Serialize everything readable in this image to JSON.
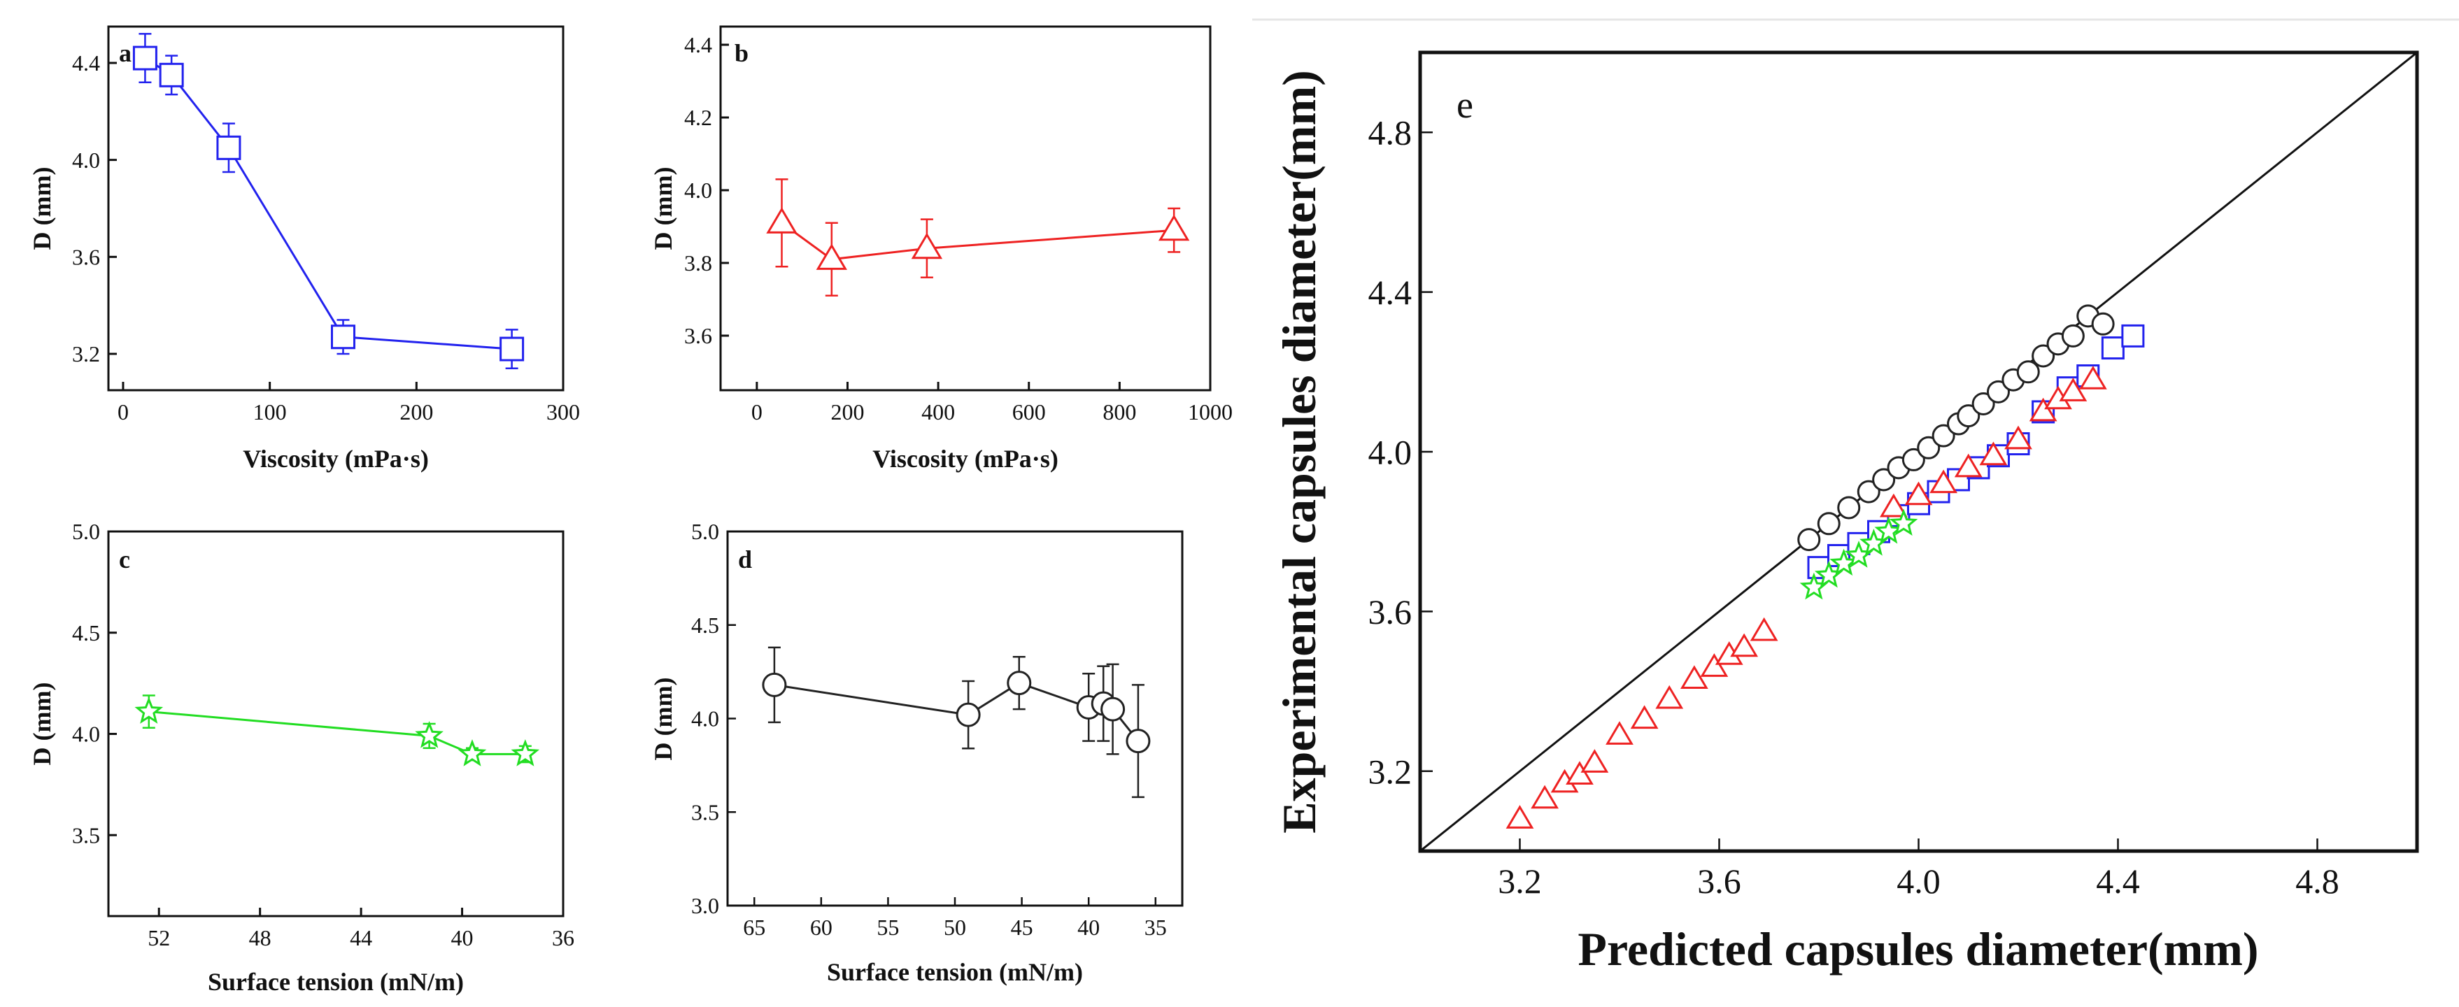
{
  "chart_data": [
    {
      "id": "a",
      "panel_label": "a",
      "type": "line",
      "title": "",
      "xlabel": "Viscosity (mPa·s)",
      "ylabel": "D (mm)",
      "xlim": [
        -10,
        300
      ],
      "ylim": [
        3.05,
        4.55
      ],
      "xticks": [
        0,
        100,
        200,
        300
      ],
      "xtick_labels": [
        "0",
        "100",
        "200",
        "300"
      ],
      "yticks": [
        3.2,
        3.6,
        4.0,
        4.4
      ],
      "ytick_labels": [
        "3.2",
        "3.6",
        "4.0",
        "4.4"
      ],
      "series": [
        {
          "name": "Viscosity (a)",
          "color": "#2222ee",
          "marker": "square",
          "x": [
            15,
            33,
            72,
            150,
            265
          ],
          "y": [
            4.42,
            4.35,
            4.05,
            3.27,
            3.22
          ],
          "err": [
            0.1,
            0.08,
            0.1,
            0.07,
            0.08
          ]
        }
      ]
    },
    {
      "id": "b",
      "panel_label": "b",
      "type": "line",
      "title": "",
      "xlabel": "Viscosity (mPa·s)",
      "ylabel": "D (mm)",
      "xlim": [
        -80,
        1000
      ],
      "ylim": [
        3.45,
        4.45
      ],
      "xticks": [
        0,
        200,
        400,
        600,
        800,
        1000
      ],
      "xtick_labels": [
        "0",
        "200",
        "400",
        "600",
        "800",
        "1000"
      ],
      "yticks": [
        3.6,
        3.8,
        4.0,
        4.2,
        4.4
      ],
      "ytick_labels": [
        "3.6",
        "3.8",
        "4.0",
        "4.2",
        "4.4"
      ],
      "series": [
        {
          "name": "Viscosity (b)",
          "color": "#ee2222",
          "marker": "triangle",
          "x": [
            55,
            165,
            375,
            920
          ],
          "y": [
            3.91,
            3.81,
            3.84,
            3.89
          ],
          "err": [
            0.12,
            0.1,
            0.08,
            0.06
          ]
        }
      ]
    },
    {
      "id": "c",
      "panel_label": "c",
      "type": "line",
      "title": "",
      "xlabel": "Surface tension (mN/m)",
      "ylabel": "D (mm)",
      "xlim": [
        54,
        36
      ],
      "ylim": [
        3.1,
        5.0
      ],
      "xticks": [
        52,
        48,
        44,
        40,
        36
      ],
      "xtick_labels": [
        "52",
        "48",
        "44",
        "40",
        "36"
      ],
      "yticks": [
        3.5,
        4.0,
        4.5,
        5.0
      ],
      "ytick_labels": [
        "3.5",
        "4.0",
        "4.5",
        "5.0"
      ],
      "series": [
        {
          "name": "Surface tension (c)",
          "color": "#22dd22",
          "marker": "star",
          "x": [
            52.4,
            41.3,
            39.6,
            37.5
          ],
          "y": [
            4.11,
            3.99,
            3.9,
            3.9
          ],
          "err": [
            0.08,
            0.06,
            0.03,
            0.04
          ]
        }
      ]
    },
    {
      "id": "d",
      "panel_label": "d",
      "type": "line",
      "title": "",
      "xlabel": "Surface tension (mN/m)",
      "ylabel": "D (mm)",
      "xlim": [
        67,
        33
      ],
      "ylim": [
        3.0,
        5.0
      ],
      "xticks": [
        65,
        60,
        55,
        50,
        45,
        40,
        35
      ],
      "xtick_labels": [
        "65",
        "60",
        "55",
        "50",
        "45",
        "40",
        "35"
      ],
      "yticks": [
        3.0,
        3.5,
        4.0,
        4.5,
        5.0
      ],
      "ytick_labels": [
        "3.0",
        "3.5",
        "4.0",
        "4.5",
        "5.0"
      ],
      "series": [
        {
          "name": "Surface tension (d)",
          "color": "#222222",
          "marker": "circle",
          "x": [
            63.5,
            49.0,
            45.2,
            40.0,
            38.9,
            38.2,
            36.3
          ],
          "y": [
            4.18,
            4.02,
            4.19,
            4.06,
            4.08,
            4.05,
            3.88
          ],
          "err": [
            0.2,
            0.18,
            0.14,
            0.18,
            0.2,
            0.24,
            0.3
          ]
        }
      ]
    },
    {
      "id": "e",
      "panel_label": "e",
      "type": "scatter",
      "title": "",
      "xlabel": "Predicted capsules diameter(mm)",
      "ylabel": "Experimental capsules diameter(mm)",
      "xlim": [
        3.0,
        5.0
      ],
      "ylim": [
        3.0,
        5.0
      ],
      "xticks": [
        3.2,
        3.6,
        4.0,
        4.4,
        4.8
      ],
      "xtick_labels": [
        "3.2",
        "3.6",
        "4.0",
        "4.4",
        "4.8"
      ],
      "yticks": [
        3.2,
        3.6,
        4.0,
        4.4,
        4.8
      ],
      "ytick_labels": [
        "3.2",
        "3.6",
        "4.0",
        "4.4",
        "4.8"
      ],
      "reference_line": {
        "name": "y = x",
        "x": [
          3.0,
          5.0
        ],
        "y": [
          3.0,
          5.0
        ]
      },
      "series": [
        {
          "name": "Circles (surface tension d)",
          "color": "#222222",
          "marker": "circle",
          "x": [
            3.78,
            3.82,
            3.86,
            3.9,
            3.93,
            3.96,
            3.99,
            4.02,
            4.05,
            4.08,
            4.1,
            4.13,
            4.16,
            4.19,
            4.22,
            4.25,
            4.28,
            4.31,
            4.34,
            4.37
          ],
          "y": [
            3.78,
            3.82,
            3.86,
            3.9,
            3.93,
            3.96,
            3.98,
            4.01,
            4.04,
            4.07,
            4.09,
            4.12,
            4.15,
            4.18,
            4.2,
            4.24,
            4.27,
            4.29,
            4.34,
            4.32
          ]
        },
        {
          "name": "Squares (viscosity a)",
          "color": "#2222ee",
          "marker": "square",
          "x": [
            3.8,
            3.84,
            3.88,
            3.92,
            3.96,
            4.0,
            4.04,
            4.08,
            4.12,
            4.16,
            4.2,
            4.25,
            4.3,
            4.34,
            4.39,
            4.43
          ],
          "y": [
            3.71,
            3.74,
            3.77,
            3.8,
            3.84,
            3.87,
            3.9,
            3.93,
            3.96,
            3.99,
            4.02,
            4.1,
            4.16,
            4.19,
            4.26,
            4.29
          ]
        },
        {
          "name": "Triangles (viscosity b)",
          "color": "#ee2222",
          "marker": "triangle",
          "x": [
            3.2,
            3.25,
            3.29,
            3.32,
            3.35,
            3.4,
            3.45,
            3.5,
            3.55,
            3.59,
            3.62,
            3.65,
            3.69,
            3.95,
            4.0,
            4.05,
            4.1,
            4.15,
            4.2,
            4.25,
            4.28,
            4.31,
            4.35
          ],
          "y": [
            3.08,
            3.13,
            3.17,
            3.19,
            3.22,
            3.29,
            3.33,
            3.38,
            3.43,
            3.46,
            3.49,
            3.51,
            3.55,
            3.86,
            3.89,
            3.92,
            3.96,
            3.99,
            4.03,
            4.1,
            4.13,
            4.15,
            4.18
          ]
        },
        {
          "name": "Stars (surface tension c)",
          "color": "#22dd22",
          "marker": "star",
          "x": [
            3.79,
            3.82,
            3.85,
            3.88,
            3.91,
            3.94,
            3.97
          ],
          "y": [
            3.66,
            3.69,
            3.72,
            3.74,
            3.77,
            3.8,
            3.82
          ]
        }
      ]
    }
  ]
}
